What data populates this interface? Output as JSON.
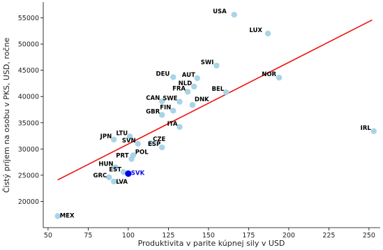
{
  "chart_data": {
    "type": "scatter",
    "title": "",
    "xlabel": "Produktivita v parite kúpnej sily v USD",
    "ylabel": "Čistý príjem na osobu v PKS, USD, ročne",
    "xlim": [
      47,
      257
    ],
    "ylim": [
      15000,
      58000
    ],
    "xticks": [
      50,
      75,
      100,
      125,
      150,
      175,
      200,
      225,
      250
    ],
    "yticks": [
      20000,
      25000,
      30000,
      35000,
      40000,
      45000,
      50000,
      55000
    ],
    "grid": false,
    "point_color": "#a8d4e6",
    "highlight_color": "#0000ee",
    "line_color": "#ee1111",
    "points": [
      {
        "label": "USA",
        "x": 166,
        "y": 55600
      },
      {
        "label": "LUX",
        "x": 187,
        "y": 52000
      },
      {
        "label": "SWI",
        "x": 155,
        "y": 45900
      },
      {
        "label": "DEU",
        "x": 128,
        "y": 43700
      },
      {
        "label": "AUT",
        "x": 143,
        "y": 43500
      },
      {
        "label": "NOR",
        "x": 194,
        "y": 43600
      },
      {
        "label": "NLD",
        "x": 141,
        "y": 41900
      },
      {
        "label": "FRA",
        "x": 137,
        "y": 40900
      },
      {
        "label": "BEL",
        "x": 161,
        "y": 40800
      },
      {
        "label": "CAN",
        "x": 121,
        "y": 39100
      },
      {
        "label": "SWE",
        "x": 132,
        "y": 39000
      },
      {
        "label": "DNK",
        "x": 140,
        "y": 38400
      },
      {
        "label": "FIN",
        "x": 128,
        "y": 37300
      },
      {
        "label": "GBR",
        "x": 121,
        "y": 36500
      },
      {
        "label": "ITA",
        "x": 132,
        "y": 34200
      },
      {
        "label": "IRL",
        "x": 253,
        "y": 33400
      },
      {
        "label": "LTU",
        "x": 101,
        "y": 32400
      },
      {
        "label": "JPN",
        "x": 91,
        "y": 31800
      },
      {
        "label": "SVN",
        "x": 106,
        "y": 31000
      },
      {
        "label": "CZE",
        "x": 114,
        "y": 31100
      },
      {
        "label": "ESP",
        "x": 121,
        "y": 30300
      },
      {
        "label": "POL",
        "x": 103,
        "y": 28800
      },
      {
        "label": "PRT",
        "x": 102,
        "y": 28100
      },
      {
        "label": "HUN",
        "x": 92,
        "y": 26500
      },
      {
        "label": "EST",
        "x": 97,
        "y": 25600
      },
      {
        "label": "SVK",
        "x": 100,
        "y": 25300,
        "highlight": true
      },
      {
        "label": "GRC",
        "x": 88,
        "y": 24600
      },
      {
        "label": "LVA",
        "x": 91,
        "y": 23800
      },
      {
        "label": "MEX",
        "x": 56,
        "y": 17200
      }
    ],
    "trendline": {
      "x": [
        56,
        252
      ],
      "y": [
        24100,
        54600
      ]
    }
  }
}
